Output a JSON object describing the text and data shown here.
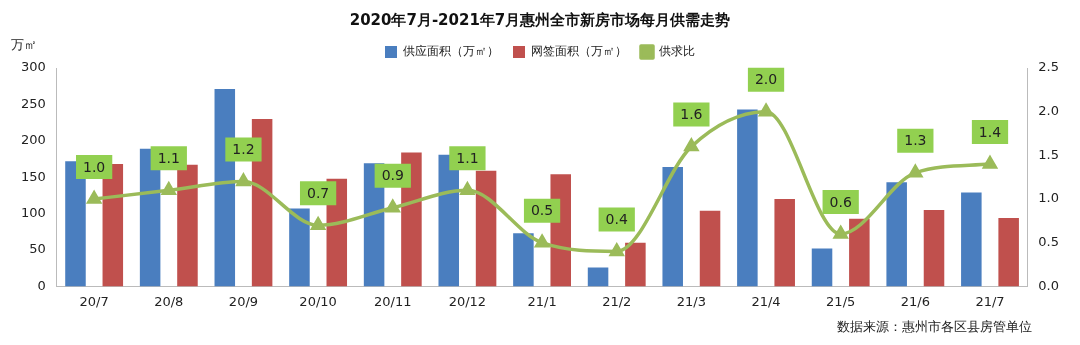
{
  "chart_data": {
    "type": "bar",
    "title": "2020年7月-2021年7月惠州全市新房市场每月供需走势",
    "ylabel": "万㎡",
    "categories": [
      "20/7",
      "20/8",
      "20/9",
      "20/10",
      "20/11",
      "20/12",
      "21/1",
      "21/2",
      "21/3",
      "21/4",
      "21/5",
      "21/6",
      "21/7"
    ],
    "series": [
      {
        "name": "供应面积（万㎡）",
        "color": "#4a7ebf",
        "values": [
          172,
          189,
          271,
          107,
          169,
          181,
          73,
          26,
          164,
          243,
          52,
          143,
          129
        ]
      },
      {
        "name": "网签面积（万㎡）",
        "color": "#c0504d",
        "values": [
          168,
          167,
          230,
          148,
          184,
          159,
          154,
          60,
          104,
          120,
          93,
          105,
          94
        ]
      },
      {
        "name": "供求比",
        "type": "line",
        "axis": "y2",
        "color": "#9bbb59",
        "marker": "triangle",
        "values": [
          1.0,
          1.1,
          1.2,
          0.7,
          0.9,
          1.1,
          0.5,
          0.4,
          1.6,
          2.0,
          0.6,
          1.3,
          1.4
        ],
        "value_labels": [
          "1.0",
          "1.1",
          "1.2",
          "0.7",
          "0.9",
          "1.1",
          "0.5",
          "0.4",
          "1.6",
          "2.0",
          "0.6",
          "1.3",
          "1.4"
        ]
      }
    ],
    "ylim": [
      0,
      300
    ],
    "yticks": [
      0,
      50,
      100,
      150,
      200,
      250,
      300
    ],
    "y2lim": [
      0,
      2.5
    ],
    "y2ticks": [
      {
        "value": 0,
        "label": "0.0"
      },
      0.5,
      {
        "value": 1,
        "label": "1.0"
      },
      1.5,
      {
        "value": 2,
        "label": "2.0"
      },
      2.5
    ],
    "grid": false,
    "legend": "top",
    "annotations": [
      "数据来源：惠州市各区县房管单位"
    ]
  }
}
